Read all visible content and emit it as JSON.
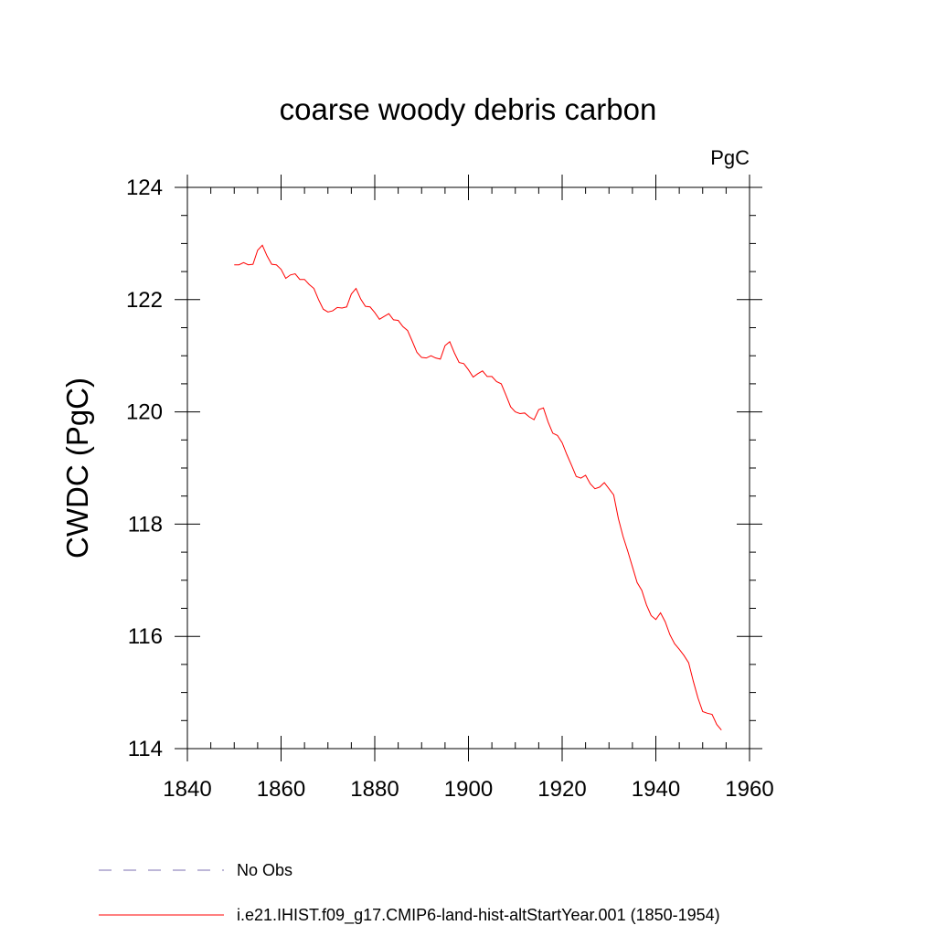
{
  "chart_data": {
    "type": "line",
    "title": "coarse woody debris carbon",
    "units": "PgC",
    "xlabel": "",
    "ylabel": "CWDC  (PgC)",
    "xlim": [
      1840,
      1960
    ],
    "ylim": [
      114,
      124
    ],
    "x_ticks": [
      "1840",
      "1860",
      "1880",
      "1900",
      "1920",
      "1940",
      "1960"
    ],
    "y_ticks": [
      "114",
      "116",
      "118",
      "120",
      "122",
      "124"
    ],
    "grid": false,
    "legend_position": "bottom-left",
    "series": [
      {
        "name": "No Obs",
        "color": "#7b6fb0",
        "dashed": true,
        "x": [],
        "y": []
      },
      {
        "name": "i.e21.IHIST.f09_g17.CMIP6-land-hist-altStartYear.001 (1850-1954)",
        "color": "#ff0000",
        "dashed": false,
        "x": [
          1850,
          1851,
          1852,
          1853,
          1854,
          1855,
          1856,
          1857,
          1858,
          1859,
          1860,
          1861,
          1862,
          1863,
          1864,
          1865,
          1866,
          1867,
          1868,
          1869,
          1870,
          1871,
          1872,
          1873,
          1874,
          1875,
          1876,
          1877,
          1878,
          1879,
          1880,
          1881,
          1882,
          1883,
          1884,
          1885,
          1886,
          1887,
          1888,
          1889,
          1890,
          1891,
          1892,
          1893,
          1894,
          1895,
          1896,
          1897,
          1898,
          1899,
          1900,
          1901,
          1902,
          1903,
          1904,
          1905,
          1906,
          1907,
          1908,
          1909,
          1910,
          1911,
          1912,
          1913,
          1914,
          1915,
          1916,
          1917,
          1918,
          1919,
          1920,
          1921,
          1922,
          1923,
          1924,
          1925,
          1926,
          1927,
          1928,
          1929,
          1930,
          1931,
          1932,
          1933,
          1934,
          1935,
          1936,
          1937,
          1938,
          1939,
          1940,
          1941,
          1942,
          1943,
          1944,
          1945,
          1946,
          1947,
          1948,
          1949,
          1950,
          1951,
          1952,
          1953,
          1954
        ],
        "y": [
          122.62,
          122.62,
          122.66,
          122.62,
          122.63,
          122.88,
          122.97,
          122.78,
          122.63,
          122.62,
          122.54,
          122.38,
          122.44,
          122.46,
          122.36,
          122.36,
          122.27,
          122.2,
          122.0,
          121.83,
          121.78,
          121.8,
          121.86,
          121.85,
          121.87,
          122.1,
          122.2,
          122.01,
          121.88,
          121.87,
          121.77,
          121.65,
          121.7,
          121.75,
          121.64,
          121.63,
          121.52,
          121.45,
          121.26,
          121.06,
          120.97,
          120.96,
          121.0,
          120.96,
          120.94,
          121.18,
          121.25,
          121.05,
          120.88,
          120.86,
          120.75,
          120.62,
          120.68,
          120.73,
          120.63,
          120.63,
          120.54,
          120.5,
          120.3,
          120.09,
          120.0,
          119.97,
          119.98,
          119.91,
          119.86,
          120.04,
          120.07,
          119.82,
          119.62,
          119.58,
          119.45,
          119.24,
          119.05,
          118.85,
          118.82,
          118.87,
          118.72,
          118.63,
          118.66,
          118.74,
          118.63,
          118.52,
          118.1,
          117.78,
          117.52,
          117.24,
          116.96,
          116.82,
          116.56,
          116.37,
          116.3,
          116.42,
          116.26,
          116.03,
          115.87,
          115.77,
          115.66,
          115.53,
          115.2,
          114.9,
          114.66,
          114.63,
          114.61,
          114.43,
          114.33
        ]
      }
    ]
  }
}
